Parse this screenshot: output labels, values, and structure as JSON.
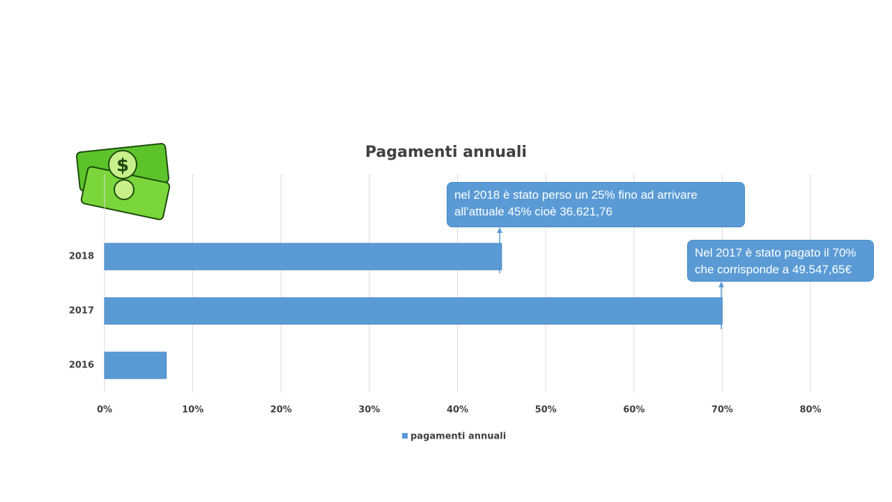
{
  "chart_data": {
    "type": "bar",
    "orientation": "horizontal",
    "title": "Pagamenti annuali",
    "categories": [
      "2018",
      "2017",
      "2016"
    ],
    "series": [
      {
        "name": "pagamenti annuali",
        "color": "#5b9bd5",
        "values": [
          45,
          70,
          7
        ]
      }
    ],
    "xlim": [
      0,
      80
    ],
    "xticks": [
      {
        "value": 0,
        "label": "0%"
      },
      {
        "value": 10,
        "label": "10%"
      },
      {
        "value": 20,
        "label": "20%"
      },
      {
        "value": 30,
        "label": "30%"
      },
      {
        "value": 40,
        "label": "40%"
      },
      {
        "value": 50,
        "label": "50%"
      },
      {
        "value": 60,
        "label": "60%"
      },
      {
        "value": 70,
        "label": "70%"
      },
      {
        "value": 80,
        "label": "80%"
      }
    ],
    "grid": true,
    "legend": "bottom",
    "annotations": [
      "nel 2018 è stato perso un 25% fino ad arrivare all’attuale 45% cioè 36.621,76",
      "Nel 2017 è stato pagato il 70% che corrisponde a 49.547,65€"
    ]
  }
}
